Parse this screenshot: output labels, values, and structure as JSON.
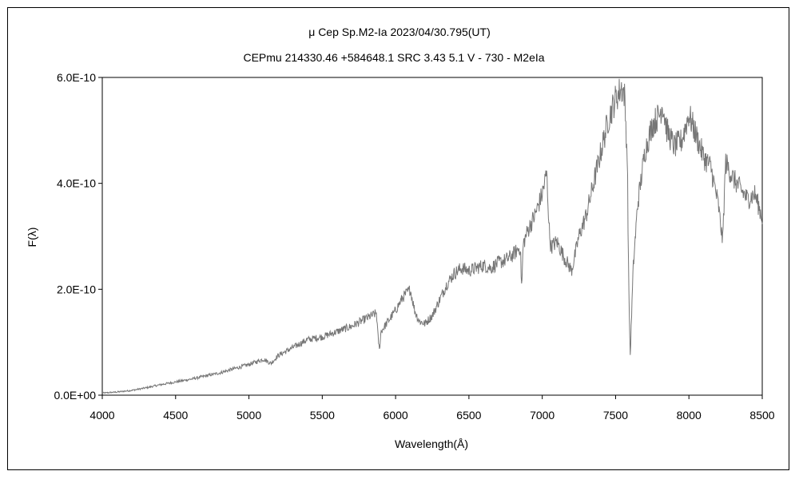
{
  "chart_data": {
    "type": "line",
    "title": "μ Cep   Sp.M2-Ia   2023/04/30.795(UT)",
    "subtitle": "CEPmu 214330.46 +584648.1 SRC 3.43 5.1 V - 730 - M2eIa",
    "xlabel": "Wavelength(Å)",
    "ylabel": "F(λ)",
    "xlim": [
      4000,
      8500
    ],
    "ylim": [
      0,
      6e-10
    ],
    "x_ticks": [
      4000,
      4500,
      5000,
      5500,
      6000,
      6500,
      7000,
      7500,
      8000,
      8500
    ],
    "x_tick_labels": [
      "4000",
      "4500",
      "5000",
      "5500",
      "6000",
      "6500",
      "7000",
      "7500",
      "8000",
      "8500"
    ],
    "y_ticks": [
      0,
      2e-10,
      4e-10,
      6e-10
    ],
    "y_tick_labels": [
      "0.0E+00",
      "2.0E-10",
      "4.0E-10",
      "6.0E-10"
    ],
    "grid": false,
    "line_color": "#777777",
    "series": [
      {
        "name": "",
        "x": [
          4000,
          4100,
          4200,
          4300,
          4400,
          4500,
          4600,
          4700,
          4800,
          4900,
          5000,
          5100,
          5150,
          5200,
          5300,
          5400,
          5500,
          5600,
          5700,
          5800,
          5870,
          5880,
          5890,
          5900,
          5950,
          6000,
          6050,
          6100,
          6130,
          6160,
          6200,
          6250,
          6300,
          6350,
          6400,
          6450,
          6500,
          6550,
          6600,
          6650,
          6700,
          6750,
          6800,
          6850,
          6860,
          6870,
          6900,
          6950,
          7000,
          7030,
          7050,
          7060,
          7100,
          7150,
          7200,
          7220,
          7250,
          7300,
          7350,
          7400,
          7450,
          7500,
          7540,
          7560,
          7580,
          7590,
          7600,
          7610,
          7620,
          7650,
          7700,
          7750,
          7800,
          7820,
          7850,
          7900,
          7950,
          8000,
          8050,
          8100,
          8150,
          8200,
          8230,
          8250,
          8300,
          8350,
          8400,
          8450,
          8500
        ],
        "y": [
          4e-12,
          6e-12,
          9e-12,
          1.4e-11,
          2e-11,
          2.5e-11,
          3e-11,
          3.6e-11,
          4.2e-11,
          5e-11,
          5.8e-11,
          6.8e-11,
          6e-11,
          7.5e-11,
          9e-11,
          1.05e-10,
          1.1e-10,
          1.2e-10,
          1.3e-10,
          1.45e-10,
          1.55e-10,
          1.1e-10,
          8.5e-11,
          1.2e-10,
          1.4e-10,
          1.6e-10,
          1.85e-10,
          2e-10,
          1.6e-10,
          1.4e-10,
          1.35e-10,
          1.5e-10,
          1.8e-10,
          2.1e-10,
          2.3e-10,
          2.4e-10,
          2.35e-10,
          2.4e-10,
          2.45e-10,
          2.4e-10,
          2.5e-10,
          2.55e-10,
          2.65e-10,
          2.8e-10,
          2e-10,
          2.85e-10,
          3.1e-10,
          3.4e-10,
          3.8e-10,
          4.2e-10,
          3e-10,
          2.8e-10,
          2.9e-10,
          2.6e-10,
          2.35e-10,
          2.6e-10,
          3e-10,
          3.4e-10,
          4e-10,
          4.6e-10,
          5.2e-10,
          5.6e-10,
          5.8e-10,
          5.7e-10,
          4.5e-10,
          2e-10,
          7.5e-11,
          1.6e-10,
          2.4e-10,
          3.6e-10,
          4.6e-10,
          5.1e-10,
          5.3e-10,
          5.5e-10,
          5e-10,
          4.7e-10,
          4.8e-10,
          5.3e-10,
          4.9e-10,
          4.5e-10,
          4.3e-10,
          3.6e-10,
          2.9e-10,
          4.4e-10,
          4.1e-10,
          3.9e-10,
          3.7e-10,
          3.8e-10,
          3.35e-10
        ]
      }
    ]
  }
}
